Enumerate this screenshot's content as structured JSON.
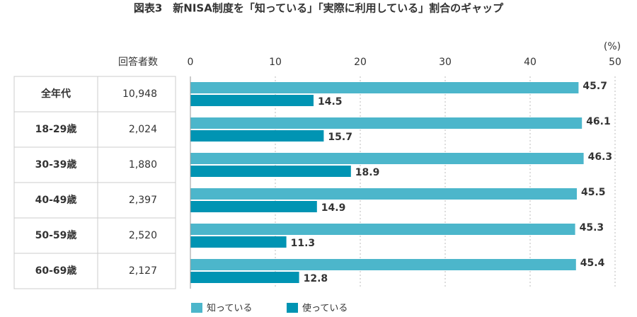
{
  "chart_data": {
    "type": "bar",
    "orientation": "horizontal",
    "title": "図表3　新NISA制度を「知っている」「実際に利用している」割合のギャップ",
    "unit_label": "(%)",
    "respondents_header": "回答者数",
    "categories": [
      "全年代",
      "18-29歳",
      "30-39歳",
      "40-49歳",
      "50-59歳",
      "60-69歳"
    ],
    "respondents": [
      "10,948",
      "2,024",
      "1,880",
      "2,397",
      "2,520",
      "2,127"
    ],
    "series": [
      {
        "name": "知っている",
        "color": "#4cb6cb",
        "values": [
          45.7,
          46.1,
          46.3,
          45.5,
          45.3,
          45.4
        ]
      },
      {
        "name": "使っている",
        "color": "#0094b3",
        "values": [
          14.5,
          15.7,
          18.9,
          14.9,
          11.3,
          12.8
        ]
      }
    ],
    "xlim": [
      0,
      50
    ],
    "xticks": [
      0,
      10,
      20,
      30,
      40,
      50
    ],
    "grid": true
  }
}
